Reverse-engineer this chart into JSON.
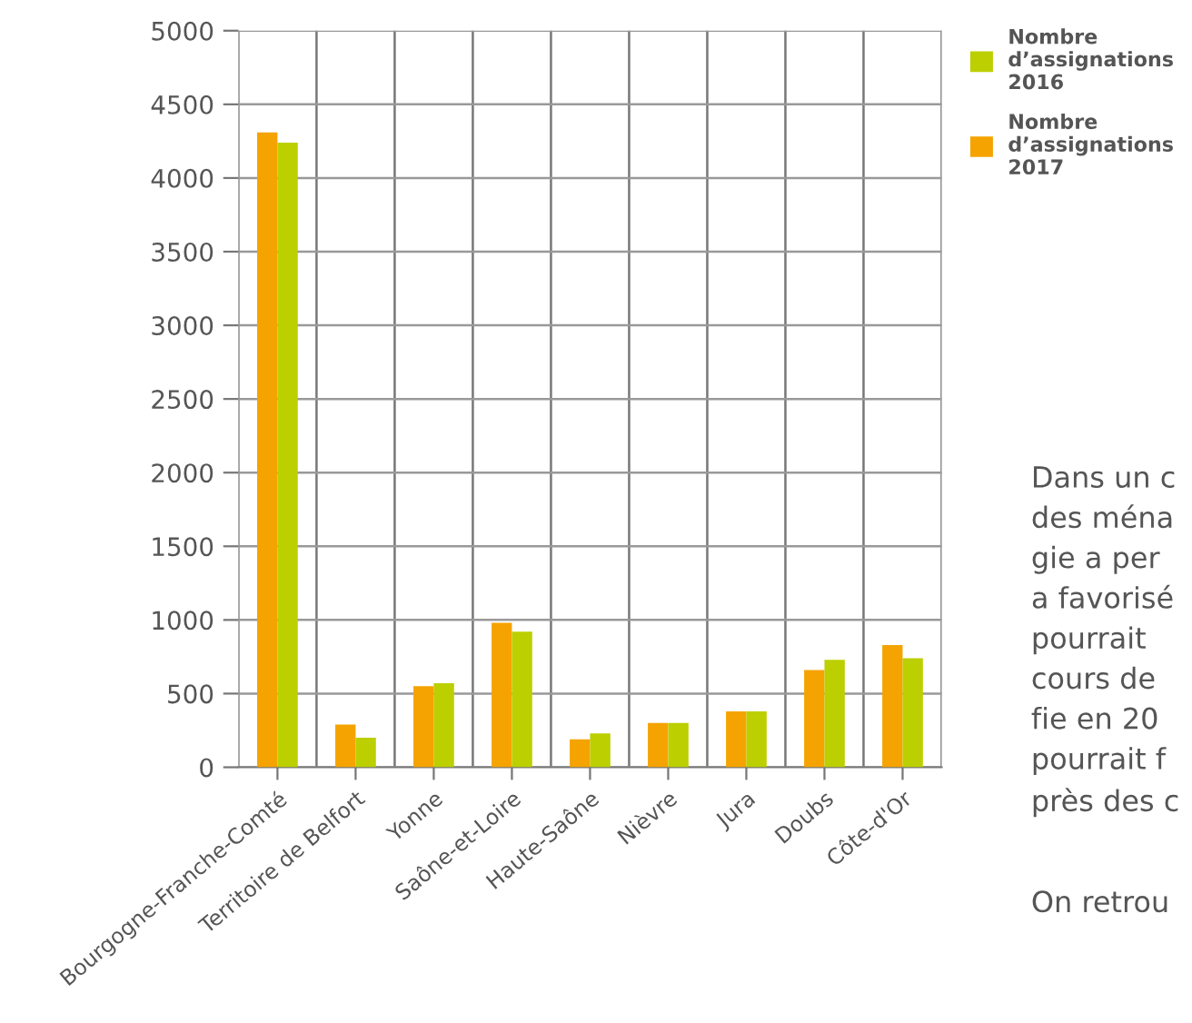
{
  "chart_data": {
    "type": "bar",
    "categories": [
      "Bourgogne-Franche-Comté",
      "Territoire de Belfort",
      "Yonne",
      "Saône-et-Loire",
      "Haute-Saône",
      "Nièvre",
      "Jura",
      "Doubs",
      "Côte-d'Or"
    ],
    "series": [
      {
        "name": "Nombre d’assignations 2017",
        "color": "#f5a300",
        "values": [
          4310,
          290,
          550,
          980,
          190,
          300,
          380,
          660,
          830
        ]
      },
      {
        "name": "Nombre d’assignations 2016",
        "color": "#bccf00",
        "values": [
          4240,
          200,
          570,
          920,
          230,
          300,
          380,
          730,
          740
        ]
      }
    ],
    "ylim": [
      0,
      5000
    ],
    "yticks": [
      0,
      500,
      1000,
      1500,
      2000,
      2500,
      3000,
      3500,
      4000,
      4500,
      5000
    ],
    "grid": true,
    "legend": "top right",
    "annotations": [
      "Dans un c\ndes ména\ngie a per\na favorisé\npourrait\ncours de\nfie en 20\npourrait f\nprès des c",
      "On retrou"
    ]
  }
}
